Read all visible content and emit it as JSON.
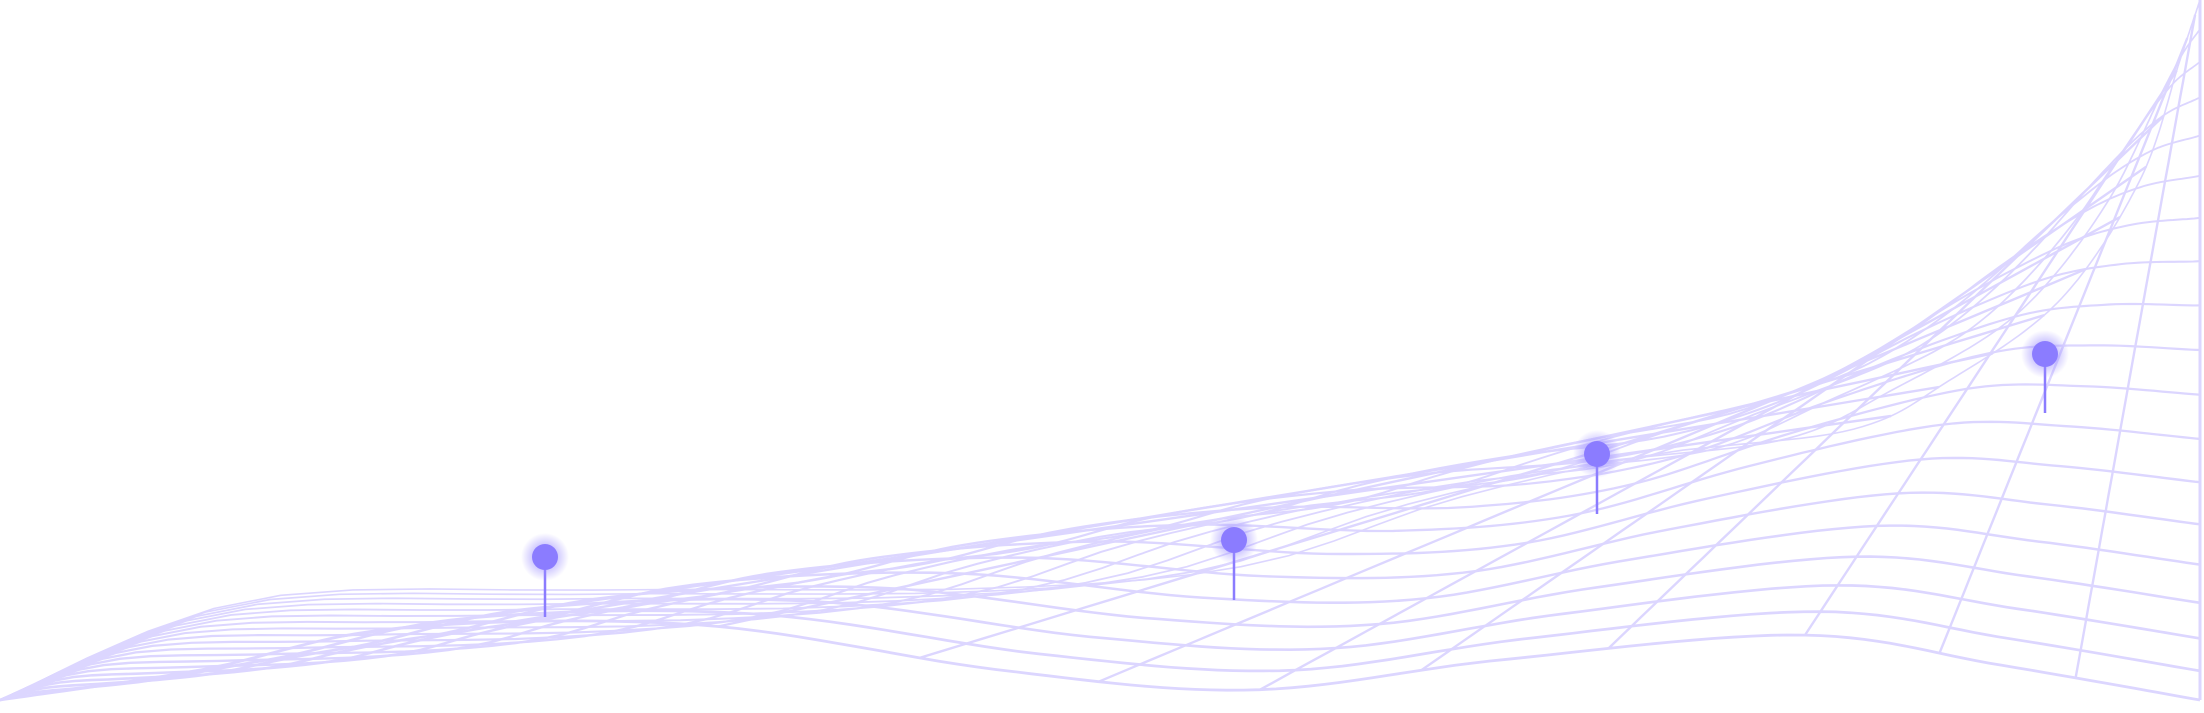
{
  "colors": {
    "mesh": "#dcd6ff",
    "pin": "#8b7cff",
    "pin_glow": "#9d8fff",
    "background": "#ffffff"
  },
  "pins": [
    {
      "name": "pin-1"
    },
    {
      "name": "pin-2"
    },
    {
      "name": "pin-3"
    },
    {
      "name": "pin-4"
    }
  ]
}
